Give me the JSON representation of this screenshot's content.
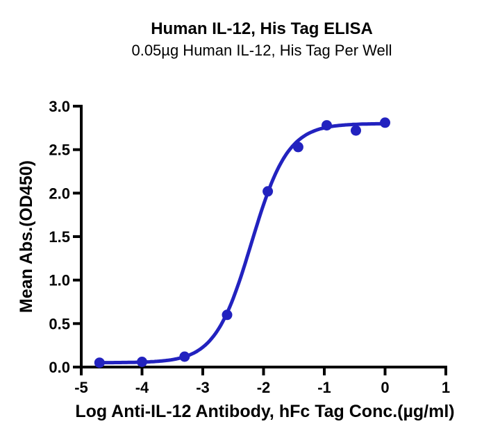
{
  "title": "Human IL-12, His Tag ELISA",
  "subtitle": "0.05µg Human IL-12, His Tag Per Well",
  "chart_data": {
    "type": "scatter",
    "title": "Human IL-12, His Tag ELISA",
    "subtitle": "0.05µg Human IL-12, His Tag Per Well",
    "xlabel": "Log Anti-IL-12 Antibody, hFc Tag Conc.(µg/ml)",
    "ylabel": "Mean Abs.(OD450)",
    "xlim": [
      -5,
      1
    ],
    "ylim": [
      0.0,
      3.0
    ],
    "grid": false,
    "legend_position": "none",
    "x_tick_labels": [
      "-5",
      "-4",
      "-3",
      "-2",
      "-1",
      "0",
      "1"
    ],
    "x_tick_values": [
      -5,
      -4,
      -3,
      -2,
      -1,
      0,
      1
    ],
    "y_tick_labels": [
      "0.0",
      "0.5",
      "1.0",
      "1.5",
      "2.0",
      "2.5",
      "3.0"
    ],
    "y_tick_values": [
      0.0,
      0.5,
      1.0,
      1.5,
      2.0,
      2.5,
      3.0
    ],
    "series_color": "#2222bf",
    "axis_color": "#000000",
    "points": [
      {
        "x": -4.7,
        "y": 0.05
      },
      {
        "x": -4.0,
        "y": 0.06
      },
      {
        "x": -3.3,
        "y": 0.12
      },
      {
        "x": -2.6,
        "y": 0.6
      },
      {
        "x": -1.93,
        "y": 2.02
      },
      {
        "x": -1.43,
        "y": 2.53
      },
      {
        "x": -0.96,
        "y": 2.78
      },
      {
        "x": -0.48,
        "y": 2.72
      },
      {
        "x": 0.0,
        "y": 2.81
      }
    ],
    "fit_curve": {
      "model": "4PL",
      "bottom": 0.05,
      "top": 2.8,
      "log_ec50": -2.2,
      "hill_slope": 1.45,
      "x_start": -4.7,
      "x_end": 0.0
    }
  }
}
